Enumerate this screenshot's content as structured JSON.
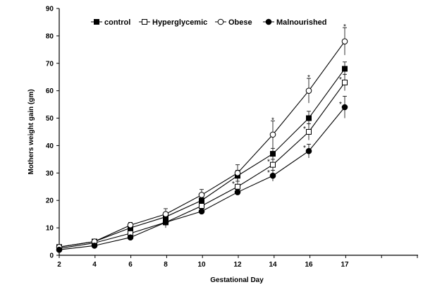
{
  "chart_data": {
    "type": "line",
    "xlabel": "Gestational Day",
    "ylabel": "Mothers weight gain (gm)",
    "x": [
      "2",
      "4",
      "6",
      "8",
      "10",
      "12",
      "14",
      "16",
      "17"
    ],
    "ylim": [
      0,
      90
    ],
    "yticks": [
      0,
      10,
      20,
      30,
      40,
      50,
      60,
      70,
      80,
      90
    ],
    "grid": false,
    "legend_position": "top",
    "significance_marker": "*",
    "series": [
      {
        "name": "control",
        "marker": "filled-square",
        "values": [
          3,
          5,
          10,
          14,
          20,
          29,
          37,
          50,
          68
        ],
        "errors": [
          0.5,
          0.5,
          1,
          1,
          1.5,
          2,
          2,
          2.5,
          2.5
        ],
        "significant": [
          false,
          false,
          false,
          false,
          false,
          false,
          false,
          false,
          false
        ]
      },
      {
        "name": "Hyperglycemic",
        "marker": "open-square",
        "values": [
          2.5,
          4.5,
          8,
          12,
          18,
          25,
          33,
          45,
          63
        ],
        "errors": [
          0.5,
          0.5,
          1,
          1,
          1.5,
          2,
          2,
          3,
          3
        ],
        "significant": [
          false,
          false,
          false,
          false,
          false,
          true,
          true,
          true,
          true
        ]
      },
      {
        "name": "Obese",
        "marker": "open-circle",
        "values": [
          3,
          5,
          11,
          15,
          22,
          30,
          44,
          60,
          78
        ],
        "errors": [
          0.5,
          0.5,
          1,
          2,
          2,
          3,
          5,
          4.5,
          5
        ],
        "significant": [
          false,
          false,
          false,
          false,
          false,
          false,
          true,
          true,
          true
        ]
      },
      {
        "name": "Malnourished",
        "marker": "filled-circle",
        "values": [
          2,
          3.5,
          6.5,
          12,
          16,
          23,
          29,
          38,
          54
        ],
        "errors": [
          0.5,
          0.5,
          0.5,
          2,
          1,
          1,
          2,
          2.5,
          4
        ],
        "significant": [
          false,
          false,
          false,
          false,
          false,
          false,
          true,
          true,
          true
        ]
      }
    ]
  }
}
